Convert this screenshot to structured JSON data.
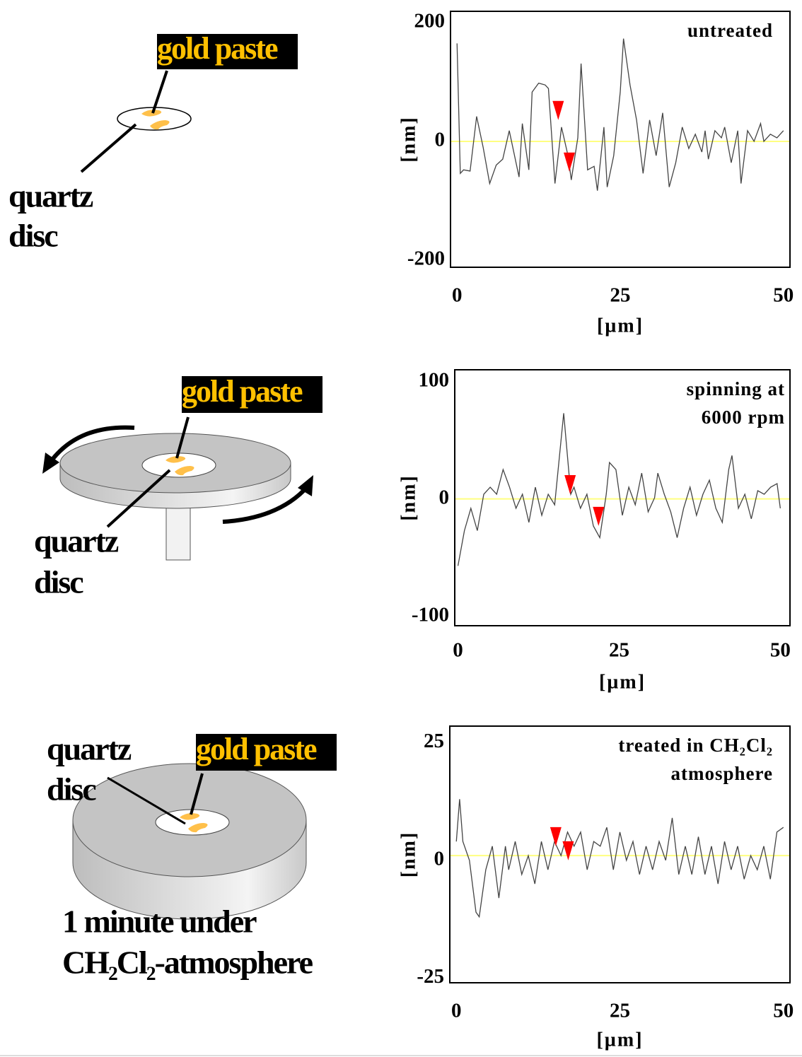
{
  "diagrams": [
    {
      "gold_paste": "gold paste",
      "quartz_disc": [
        "quartz",
        "disc"
      ]
    },
    {
      "gold_paste": "gold paste",
      "quartz_disc": [
        "quartz",
        "disc"
      ]
    },
    {
      "gold_paste": "gold paste",
      "quartz_disc": [
        "quartz",
        "disc"
      ],
      "caption": [
        "1 minute under",
        "CH₂Cl₂-atmosphere"
      ]
    }
  ],
  "chart_data": [
    {
      "type": "line",
      "annotation": [
        "untreated"
      ],
      "ylabel": "[nm]",
      "xlabel": "[µm]",
      "xlim": [
        -1,
        51
      ],
      "ylim": [
        -212,
        219
      ],
      "xticks": [
        0,
        25,
        50
      ],
      "yticks": [
        -200,
        0,
        200
      ],
      "color": "#444444",
      "hline": {
        "value": 0,
        "color": "#ffff80"
      },
      "x": [
        0,
        0.5,
        1,
        2,
        3,
        4,
        5,
        6,
        7,
        8,
        9.5,
        10,
        11,
        11.5,
        12.5,
        13.5,
        14,
        15,
        16,
        17,
        17.5,
        18.5,
        19,
        20,
        21,
        21.5,
        22.5,
        23,
        24,
        25,
        25.5,
        26.5,
        27.5,
        28.5,
        29.5,
        30.5,
        31.5,
        32.5,
        33.5,
        34.5,
        35.5,
        36.5,
        37.5,
        38,
        38.5,
        39.5,
        40.5,
        41,
        42,
        43,
        43.5,
        44.5,
        45.5,
        46.5,
        47,
        48,
        49,
        50
      ],
      "values": [
        165,
        -54,
        -48,
        -50,
        42,
        -10,
        -71,
        -40,
        -30,
        18,
        -60,
        30,
        -48,
        83,
        98,
        95,
        89,
        -71,
        24,
        -24,
        -65,
        6,
        131,
        -48,
        -42,
        -83,
        24,
        -77,
        -24,
        83,
        173,
        95,
        36,
        -54,
        36,
        -24,
        48,
        -77,
        -36,
        24,
        -12,
        12,
        -18,
        18,
        -30,
        18,
        6,
        24,
        -36,
        18,
        -71,
        18,
        0,
        30,
        0,
        12,
        6,
        18
      ],
      "markers": {
        "color": "#ff0000",
        "x": [
          15.5,
          17.2
        ],
        "values": [
          36,
          -51
        ]
      }
    },
    {
      "type": "line",
      "annotation": [
        "spinning at",
        "6000 rpm"
      ],
      "ylabel": "[nm]",
      "xlabel": "[µm]",
      "xlim": [
        -0.5,
        51.5
      ],
      "ylim": [
        -108,
        110
      ],
      "xticks": [
        0,
        25,
        50
      ],
      "yticks": [
        -100,
        0,
        100
      ],
      "color": "#444444",
      "hline": {
        "value": 0,
        "color": "#ffff80"
      },
      "x": [
        0,
        1,
        2,
        3,
        4,
        5,
        6,
        7,
        8,
        9,
        10,
        11,
        12,
        13,
        14,
        15,
        16.4,
        17.5,
        18,
        19,
        20,
        21,
        22,
        23,
        23.5,
        24.5,
        25.5,
        26.5,
        27.5,
        28.5,
        29.5,
        30.5,
        31,
        32,
        33,
        34,
        35,
        36,
        37,
        38,
        39,
        40,
        41,
        42,
        42.5,
        43.5,
        44.5,
        45.5,
        46.5,
        47.5,
        48.5,
        49.5,
        50
      ],
      "values": [
        -57,
        -27,
        -8,
        -27,
        4,
        10,
        4,
        25,
        10,
        -8,
        4,
        -20,
        10,
        -14,
        4,
        -5,
        73,
        4,
        10,
        -8,
        4,
        -23,
        -33,
        4,
        31,
        25,
        -14,
        10,
        -5,
        22,
        -11,
        1,
        22,
        4,
        -11,
        -33,
        -8,
        10,
        -14,
        4,
        16,
        -8,
        -20,
        25,
        37,
        -8,
        4,
        -17,
        7,
        4,
        10,
        13,
        -8
      ],
      "markers": {
        "color": "#ff0000",
        "x": [
          17.4,
          21.8
        ],
        "values": [
          4,
          -23
        ]
      }
    },
    {
      "type": "line",
      "annotation": [
        "treated in CH₂Cl₂",
        "atmosphere"
      ],
      "ylabel": "[nm]",
      "xlabel": "[µm]",
      "xlim": [
        -1,
        51
      ],
      "ylim": [
        -26,
        28.5
      ],
      "xticks": [
        0,
        25,
        50
      ],
      "yticks": [
        -25,
        0,
        25
      ],
      "color": "#444444",
      "hline": {
        "value": 1,
        "color": "#ffff80"
      },
      "x": [
        0,
        0.5,
        1,
        2,
        3,
        3.5,
        4.5,
        5.5,
        6.5,
        7.5,
        8,
        9,
        10,
        11,
        12,
        13,
        14,
        15,
        16,
        17,
        18,
        19,
        20,
        21,
        22,
        23,
        24,
        25,
        26,
        27,
        28,
        29,
        30,
        31,
        32,
        33,
        34,
        35,
        36,
        37,
        38,
        39,
        40,
        41,
        42,
        43,
        44,
        45,
        46,
        47,
        48,
        49,
        50
      ],
      "values": [
        4,
        13,
        4,
        0,
        -11,
        -12,
        -2,
        3,
        -8,
        3,
        -2,
        4,
        -3,
        1,
        -5,
        4,
        -2,
        4,
        1,
        6,
        3,
        6,
        -2,
        4,
        3,
        7,
        -2,
        6,
        0,
        4,
        -3,
        3,
        -2,
        4,
        0,
        9,
        -3,
        3,
        -3,
        5,
        -3,
        3,
        -5,
        4,
        -2,
        3,
        -4,
        1,
        -2,
        3,
        -4,
        6,
        7
      ],
      "markers": {
        "color": "#ff0000",
        "x": [
          15.2,
          17.1
        ],
        "values": [
          3,
          0
        ]
      }
    }
  ]
}
